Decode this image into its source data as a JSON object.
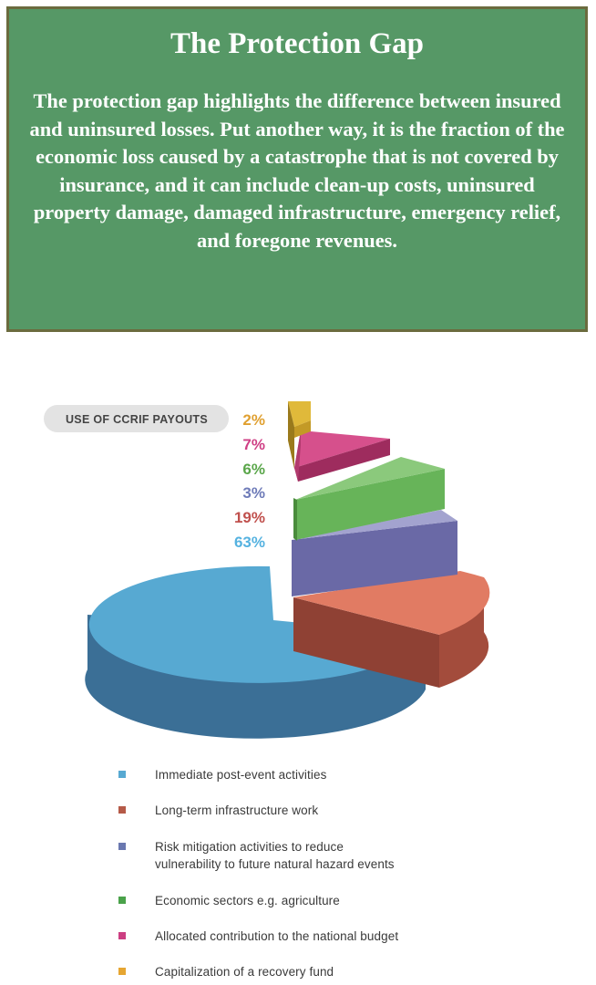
{
  "banner": {
    "title": "The Protection Gap",
    "body": "The protection gap highlights the difference between insured and uninsured losses. Put another way, it is the fraction of the economic loss caused by a catastrophe that is not covered by insurance, and it can include clean-up costs, uninsured property damage, damaged infrastructure, emergency relief, and foregone revenues."
  },
  "chart_data": {
    "type": "pie",
    "title": "USE OF CCRIF PAYOUTS",
    "display": "3d-exploded",
    "slices": [
      {
        "label": "Immediate post-event activities",
        "value": 63,
        "display": "63%",
        "color": "#57a9d2"
      },
      {
        "label": "Long-term infrastructure work",
        "value": 19,
        "display": "19%",
        "color": "#e17b63"
      },
      {
        "label": "Risk mitigation activities to reduce\nvulnerability to future natural hazard events",
        "value": 3,
        "display": "3%",
        "color": "#6a69a6"
      },
      {
        "label": "Economic sectors e.g. agriculture",
        "value": 6,
        "display": "6%",
        "color": "#67b459"
      },
      {
        "label": "Allocated contribution to the national budget",
        "value": 7,
        "display": "7%",
        "color": "#d6508c"
      },
      {
        "label": "Capitalization of a recovery fund",
        "value": 2,
        "display": "2%",
        "color": "#e0b93a"
      }
    ],
    "label_colors": [
      "#55b2e0",
      "#c0504d",
      "#6e7bb8",
      "#5aa64a",
      "#cf3f85",
      "#e0a030"
    ],
    "legend_colors": [
      "#57a9d2",
      "#b55a48",
      "#6a78b0",
      "#4aa24a",
      "#cc3f82",
      "#e6a632"
    ],
    "legend_placement": "bottom"
  }
}
